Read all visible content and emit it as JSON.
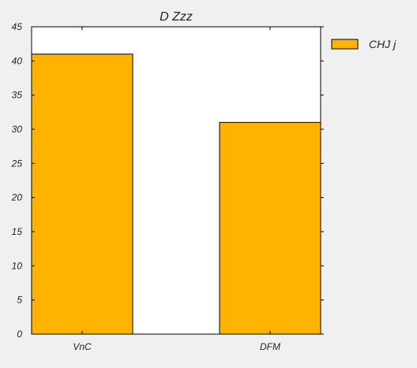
{
  "colors": {
    "background": "#f0f0f0",
    "plot_area": "#ffffff",
    "bar_fill": "#ffb300",
    "bar_stroke": "#000000",
    "axis": "#000000"
  },
  "chart_data": {
    "type": "bar",
    "title": "D Zzz",
    "xlabel": "",
    "ylabel": "",
    "categories": [
      "VnC",
      "DFM"
    ],
    "series": [
      {
        "name": "CHJ j",
        "values": [
          41,
          31
        ]
      }
    ],
    "ylim": [
      0,
      45
    ],
    "yticks": [
      0,
      5,
      10,
      15,
      20,
      25,
      30,
      35,
      40,
      45
    ],
    "grid": false,
    "legend_position": "outside-right-top"
  }
}
